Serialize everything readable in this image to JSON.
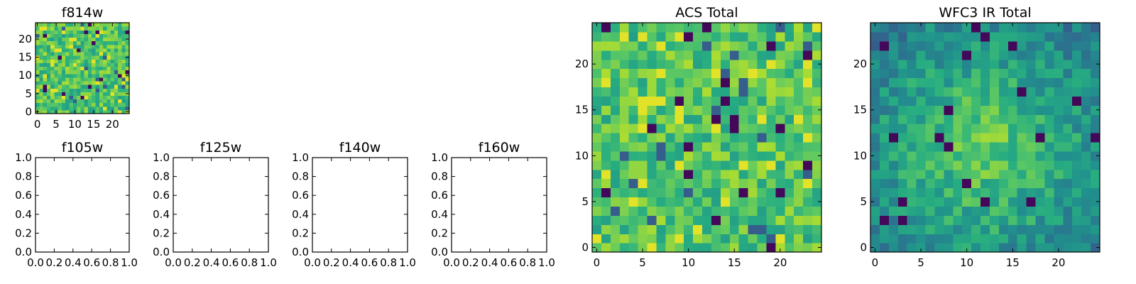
{
  "chart_data": [
    {
      "id": "f814w",
      "type": "heatmap",
      "title": "f814w",
      "colormap": "viridis",
      "grid_size": 25,
      "xlim": [
        -0.5,
        24.5
      ],
      "ylim": [
        -0.5,
        24.5
      ],
      "x_ticks": [
        0,
        5,
        10,
        15,
        20
      ],
      "y_ticks": [
        0,
        5,
        10,
        15,
        20
      ],
      "x_tick_labels": [
        "0",
        "5",
        "10",
        "15",
        "20"
      ],
      "y_tick_labels": [
        "0",
        "5",
        "10",
        "15",
        "20"
      ],
      "value_range": [
        0,
        1
      ]
    },
    {
      "id": "f105w",
      "type": "heatmap",
      "title": "f105w",
      "empty": true,
      "xlim": [
        0,
        1
      ],
      "ylim": [
        0,
        1
      ],
      "x_ticks": [
        0,
        0.2,
        0.4,
        0.6,
        0.8,
        1.0
      ],
      "y_ticks": [
        0,
        0.2,
        0.4,
        0.6,
        0.8,
        1.0
      ],
      "x_tick_labels": [
        "0.0",
        "0.2",
        "0.4",
        "0.6",
        "0.8",
        "1.0"
      ],
      "y_tick_labels": [
        "0.0",
        "0.2",
        "0.4",
        "0.6",
        "0.8",
        "1.0"
      ]
    },
    {
      "id": "f125w",
      "type": "heatmap",
      "title": "f125w",
      "empty": true,
      "xlim": [
        0,
        1
      ],
      "ylim": [
        0,
        1
      ],
      "x_ticks": [
        0,
        0.2,
        0.4,
        0.6,
        0.8,
        1.0
      ],
      "y_ticks": [
        0,
        0.2,
        0.4,
        0.6,
        0.8,
        1.0
      ],
      "x_tick_labels": [
        "0.0",
        "0.2",
        "0.4",
        "0.6",
        "0.8",
        "1.0"
      ],
      "y_tick_labels": [
        "0.0",
        "0.2",
        "0.4",
        "0.6",
        "0.8",
        "1.0"
      ]
    },
    {
      "id": "f140w",
      "type": "heatmap",
      "title": "f140w",
      "empty": true,
      "xlim": [
        0,
        1
      ],
      "ylim": [
        0,
        1
      ],
      "x_ticks": [
        0,
        0.2,
        0.4,
        0.6,
        0.8,
        1.0
      ],
      "y_ticks": [
        0,
        0.2,
        0.4,
        0.6,
        0.8,
        1.0
      ],
      "x_tick_labels": [
        "0.0",
        "0.2",
        "0.4",
        "0.6",
        "0.8",
        "1.0"
      ],
      "y_tick_labels": [
        "0.0",
        "0.2",
        "0.4",
        "0.6",
        "0.8",
        "1.0"
      ]
    },
    {
      "id": "f160w",
      "type": "heatmap",
      "title": "f160w",
      "empty": true,
      "xlim": [
        0,
        1
      ],
      "ylim": [
        0,
        1
      ],
      "x_ticks": [
        0,
        0.2,
        0.4,
        0.6,
        0.8,
        1.0
      ],
      "y_ticks": [
        0,
        0.2,
        0.4,
        0.6,
        0.8,
        1.0
      ],
      "x_tick_labels": [
        "0.0",
        "0.2",
        "0.4",
        "0.6",
        "0.8",
        "1.0"
      ],
      "y_tick_labels": [
        "0.0",
        "0.2",
        "0.4",
        "0.6",
        "0.8",
        "1.0"
      ]
    },
    {
      "id": "acs_total",
      "type": "heatmap",
      "title": "ACS Total",
      "colormap": "viridis",
      "grid_size": 25,
      "xlim": [
        -0.5,
        24.5
      ],
      "ylim": [
        -0.5,
        24.5
      ],
      "x_ticks": [
        0,
        5,
        10,
        15,
        20
      ],
      "y_ticks": [
        0,
        5,
        10,
        15,
        20
      ],
      "x_tick_labels": [
        "0",
        "5",
        "10",
        "15",
        "20"
      ],
      "y_tick_labels": [
        "0",
        "5",
        "10",
        "15",
        "20"
      ],
      "value_range": [
        0,
        1
      ]
    },
    {
      "id": "wfc3_ir_total",
      "type": "heatmap",
      "title": "WFC3 IR Total",
      "colormap": "viridis",
      "grid_size": 25,
      "xlim": [
        -0.5,
        24.5
      ],
      "ylim": [
        -0.5,
        24.5
      ],
      "x_ticks": [
        0,
        5,
        10,
        15,
        20
      ],
      "y_ticks": [
        0,
        5,
        10,
        15,
        20
      ],
      "x_tick_labels": [
        "0",
        "5",
        "10",
        "15",
        "20"
      ],
      "y_tick_labels": [
        "0",
        "5",
        "10",
        "15",
        "20"
      ],
      "value_range": [
        0,
        1
      ]
    }
  ]
}
